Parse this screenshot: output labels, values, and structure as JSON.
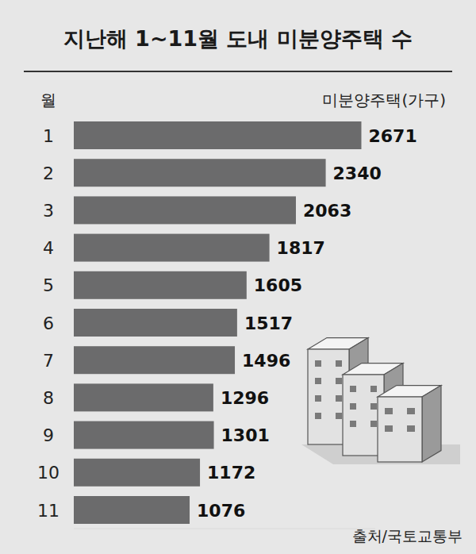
{
  "chart_data": {
    "type": "bar",
    "title": "지난해 1~11월 도내 미분양주택 수",
    "orientation": "horizontal",
    "y_label": "월",
    "x_label": "미분양주택(가구)",
    "categories": [
      "1",
      "2",
      "3",
      "4",
      "5",
      "6",
      "7",
      "8",
      "9",
      "10",
      "11"
    ],
    "values": [
      2671,
      2340,
      2063,
      1817,
      1605,
      1517,
      1496,
      1296,
      1301,
      1172,
      1076
    ],
    "color": "#6b6b6c",
    "xlim": [
      0,
      2800
    ],
    "xticks": [],
    "grid": false,
    "data_labels": true,
    "tick_labels": false,
    "source": "출처/국토교통부"
  }
}
